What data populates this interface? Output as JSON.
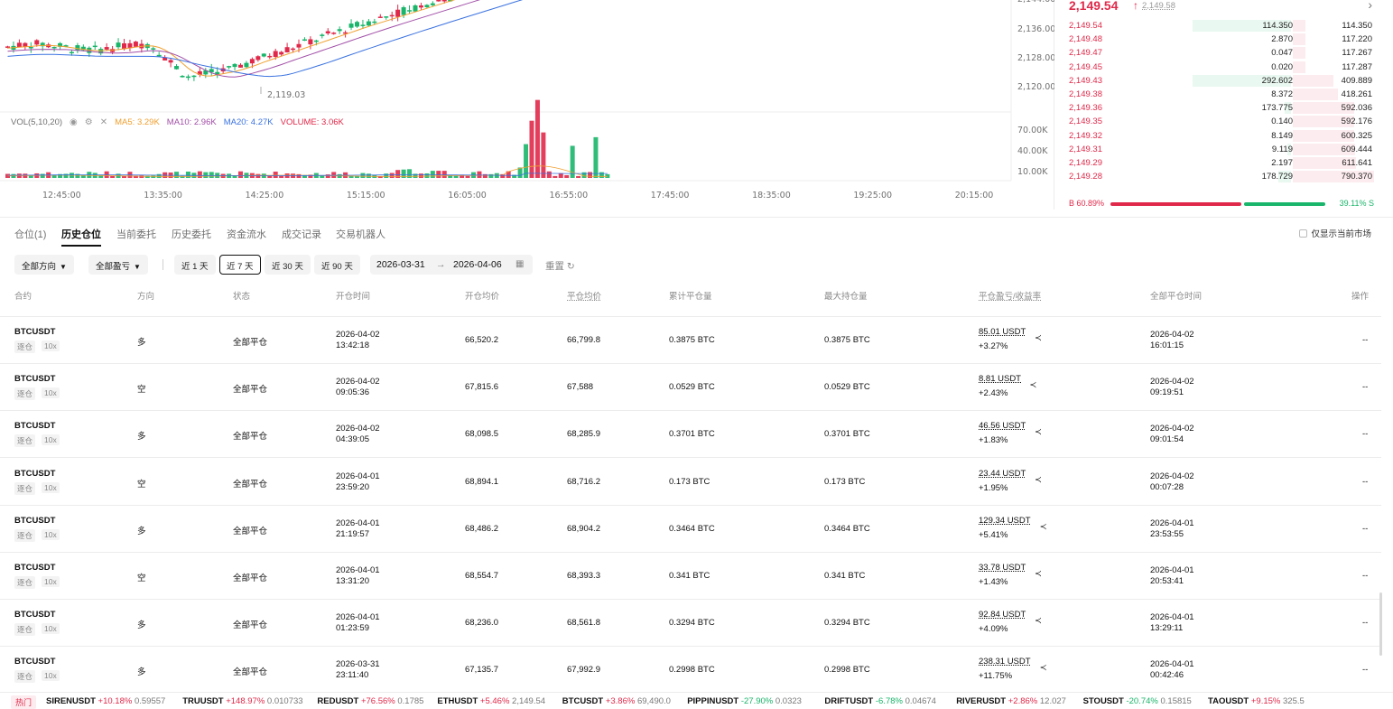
{
  "chart": {
    "price_axis": [
      "2,144.00",
      "2,136.00",
      "2,128.00",
      "2,120.00"
    ],
    "low_label": "2,119.03",
    "vol_axis": [
      "70.00K",
      "40.00K",
      "10.00K"
    ],
    "time_axis": [
      "12:45:00",
      "13:35:00",
      "14:25:00",
      "15:15:00",
      "16:05:00",
      "16:55:00",
      "17:45:00",
      "18:35:00",
      "19:25:00",
      "20:15:00"
    ],
    "vol_legend": {
      "title": "VOL(5,10,20)",
      "ma5": "MA5: 3.29K",
      "ma10": "MA10: 2.96K",
      "ma20": "MA20: 4.27K",
      "volume": "VOLUME: 3.06K"
    },
    "colors": {
      "up": "#e0294a",
      "down": "#19b56a",
      "ma5": "#f0a030",
      "ma10": "#a24fa8",
      "ma20": "#3a72e0"
    }
  },
  "orderbook": {
    "last_price": "2,149.54",
    "mark_price": "2,149.58",
    "rows": [
      {
        "price": "2,149.54",
        "qty": "114.350",
        "total": "114.350",
        "left": 0.8,
        "right": 0.15
      },
      {
        "price": "2,149.48",
        "qty": "2.870",
        "total": "117.220",
        "left": 0,
        "right": 0.15
      },
      {
        "price": "2,149.47",
        "qty": "0.047",
        "total": "117.267",
        "left": 0,
        "right": 0.15
      },
      {
        "price": "2,149.45",
        "qty": "0.020",
        "total": "117.287",
        "left": 0,
        "right": 0.15
      },
      {
        "price": "2,149.43",
        "qty": "292.602",
        "total": "409.889",
        "left": 0.8,
        "right": 0.5
      },
      {
        "price": "2,149.38",
        "qty": "8.372",
        "total": "418.261",
        "left": 0,
        "right": 0.55
      },
      {
        "price": "2,149.36",
        "qty": "173.775",
        "total": "592.036",
        "left": 0.05,
        "right": 0.75
      },
      {
        "price": "2,149.35",
        "qty": "0.140",
        "total": "592.176",
        "left": 0,
        "right": 0.75
      },
      {
        "price": "2,149.32",
        "qty": "8.149",
        "total": "600.325",
        "left": 0,
        "right": 0.76
      },
      {
        "price": "2,149.31",
        "qty": "9.119",
        "total": "609.444",
        "left": 0.03,
        "right": 0.77
      },
      {
        "price": "2,149.29",
        "qty": "2.197",
        "total": "611.641",
        "left": 0,
        "right": 0.78
      },
      {
        "price": "2,149.28",
        "qty": "178.729",
        "total": "790.370",
        "left": 0.1,
        "right": 1.0
      }
    ],
    "buy_ratio": "B 60.89%",
    "sell_ratio": "39.11% S",
    "buy_fraction": 0.6089
  },
  "tabs": [
    "仓位(1)",
    "历史仓位",
    "当前委托",
    "历史委托",
    "资金流水",
    "成交记录",
    "交易机器人"
  ],
  "active_tab": 1,
  "only_current_market": "仅显示当前市场",
  "filters": {
    "direction": "全部方向",
    "pnl": "全部盈亏",
    "ranges": [
      "近 1 天",
      "近 7 天",
      "近 30 天",
      "近 90 天"
    ],
    "active_range": 1,
    "date_from": "2026-03-31",
    "date_to": "2026-04-06",
    "reset": "重置"
  },
  "table": {
    "headers": [
      "合约",
      "方向",
      "状态",
      "开仓时间",
      "开仓均价",
      "平仓均价",
      "累计平仓量",
      "最大持仓量",
      "平仓盈亏/收益率",
      "全部平仓时间",
      "操作"
    ],
    "rows": [
      {
        "symbol": "BTCUSDT",
        "margin": "逐仓",
        "lev": "10x",
        "dir": "多",
        "long": true,
        "status": "全部平仓",
        "open_date": "2026-04-02",
        "open_time": "13:42:18",
        "open_px": "66,520.2",
        "close_px": "66,799.8",
        "closed_qty": "0.3875 BTC",
        "max_qty": "0.3875 BTC",
        "pnl": "85.01 USDT",
        "roi": "+3.27%",
        "close_date": "2026-04-02",
        "close_time": "16:01:15",
        "op": "--"
      },
      {
        "symbol": "BTCUSDT",
        "margin": "逐仓",
        "lev": "10x",
        "dir": "空",
        "long": false,
        "status": "全部平仓",
        "open_date": "2026-04-02",
        "open_time": "09:05:36",
        "open_px": "67,815.6",
        "close_px": "67,588",
        "closed_qty": "0.0529 BTC",
        "max_qty": "0.0529 BTC",
        "pnl": "8.81 USDT",
        "roi": "+2.43%",
        "close_date": "2026-04-02",
        "close_time": "09:19:51",
        "op": "--"
      },
      {
        "symbol": "BTCUSDT",
        "margin": "逐仓",
        "lev": "10x",
        "dir": "多",
        "long": true,
        "status": "全部平仓",
        "open_date": "2026-04-02",
        "open_time": "04:39:05",
        "open_px": "68,098.5",
        "close_px": "68,285.9",
        "closed_qty": "0.3701 BTC",
        "max_qty": "0.3701 BTC",
        "pnl": "46.56 USDT",
        "roi": "+1.83%",
        "close_date": "2026-04-02",
        "close_time": "09:01:54",
        "op": "--"
      },
      {
        "symbol": "BTCUSDT",
        "margin": "逐仓",
        "lev": "10x",
        "dir": "空",
        "long": false,
        "status": "全部平仓",
        "open_date": "2026-04-01",
        "open_time": "23:59:20",
        "open_px": "68,894.1",
        "close_px": "68,716.2",
        "closed_qty": "0.173 BTC",
        "max_qty": "0.173 BTC",
        "pnl": "23.44 USDT",
        "roi": "+1.95%",
        "close_date": "2026-04-02",
        "close_time": "00:07:28",
        "op": "--"
      },
      {
        "symbol": "BTCUSDT",
        "margin": "逐仓",
        "lev": "10x",
        "dir": "多",
        "long": true,
        "status": "全部平仓",
        "open_date": "2026-04-01",
        "open_time": "21:19:57",
        "open_px": "68,486.2",
        "close_px": "68,904.2",
        "closed_qty": "0.3464 BTC",
        "max_qty": "0.3464 BTC",
        "pnl": "129.34 USDT",
        "roi": "+5.41%",
        "close_date": "2026-04-01",
        "close_time": "23:53:55",
        "op": "--"
      },
      {
        "symbol": "BTCUSDT",
        "margin": "逐仓",
        "lev": "10x",
        "dir": "空",
        "long": false,
        "status": "全部平仓",
        "open_date": "2026-04-01",
        "open_time": "13:31:20",
        "open_px": "68,554.7",
        "close_px": "68,393.3",
        "closed_qty": "0.341 BTC",
        "max_qty": "0.341 BTC",
        "pnl": "33.78 USDT",
        "roi": "+1.43%",
        "close_date": "2026-04-01",
        "close_time": "20:53:41",
        "op": "--"
      },
      {
        "symbol": "BTCUSDT",
        "margin": "逐仓",
        "lev": "10x",
        "dir": "多",
        "long": true,
        "status": "全部平仓",
        "open_date": "2026-04-01",
        "open_time": "01:23:59",
        "open_px": "68,236.0",
        "close_px": "68,561.8",
        "closed_qty": "0.3294 BTC",
        "max_qty": "0.3294 BTC",
        "pnl": "92.84 USDT",
        "roi": "+4.09%",
        "close_date": "2026-04-01",
        "close_time": "13:29:11",
        "op": "--"
      },
      {
        "symbol": "BTCUSDT",
        "margin": "逐仓",
        "lev": "10x",
        "dir": "多",
        "long": true,
        "status": "全部平仓",
        "open_date": "2026-03-31",
        "open_time": "23:11:40",
        "open_px": "67,135.7",
        "close_px": "67,992.9",
        "closed_qty": "0.2998 BTC",
        "max_qty": "0.2998 BTC",
        "pnl": "238.31 USDT",
        "roi": "+11.75%",
        "close_date": "2026-04-01",
        "close_time": "00:42:46",
        "op": "--"
      }
    ]
  },
  "ticker": {
    "hot": "热门",
    "items": [
      {
        "name": "SIRENUSDT",
        "chg": "+10.18%",
        "up": true,
        "price": "0.59557"
      },
      {
        "name": "TRUUSDT",
        "chg": "+148.97%",
        "up": true,
        "price": "0.010733"
      },
      {
        "name": "REDUSDT",
        "chg": "+76.56%",
        "up": true,
        "price": "0.1785"
      },
      {
        "name": "ETHUSDT",
        "chg": "+5.46%",
        "up": true,
        "price": "2,149.54"
      },
      {
        "name": "BTCUSDT",
        "chg": "+3.86%",
        "up": true,
        "price": "69,490.0"
      },
      {
        "name": "PIPPINUSDT",
        "chg": "-27.90%",
        "up": false,
        "price": "0.0323"
      },
      {
        "name": "DRIFTUSDT",
        "chg": "-6.78%",
        "up": false,
        "price": "0.04674"
      },
      {
        "name": "RIVERUSDT",
        "chg": "+2.86%",
        "up": true,
        "price": "12.027"
      },
      {
        "name": "STOUSDT",
        "chg": "-20.74%",
        "up": false,
        "price": "0.15815"
      },
      {
        "name": "TAOUSDT",
        "chg": "+9.15%",
        "up": true,
        "price": "325.5"
      }
    ]
  }
}
